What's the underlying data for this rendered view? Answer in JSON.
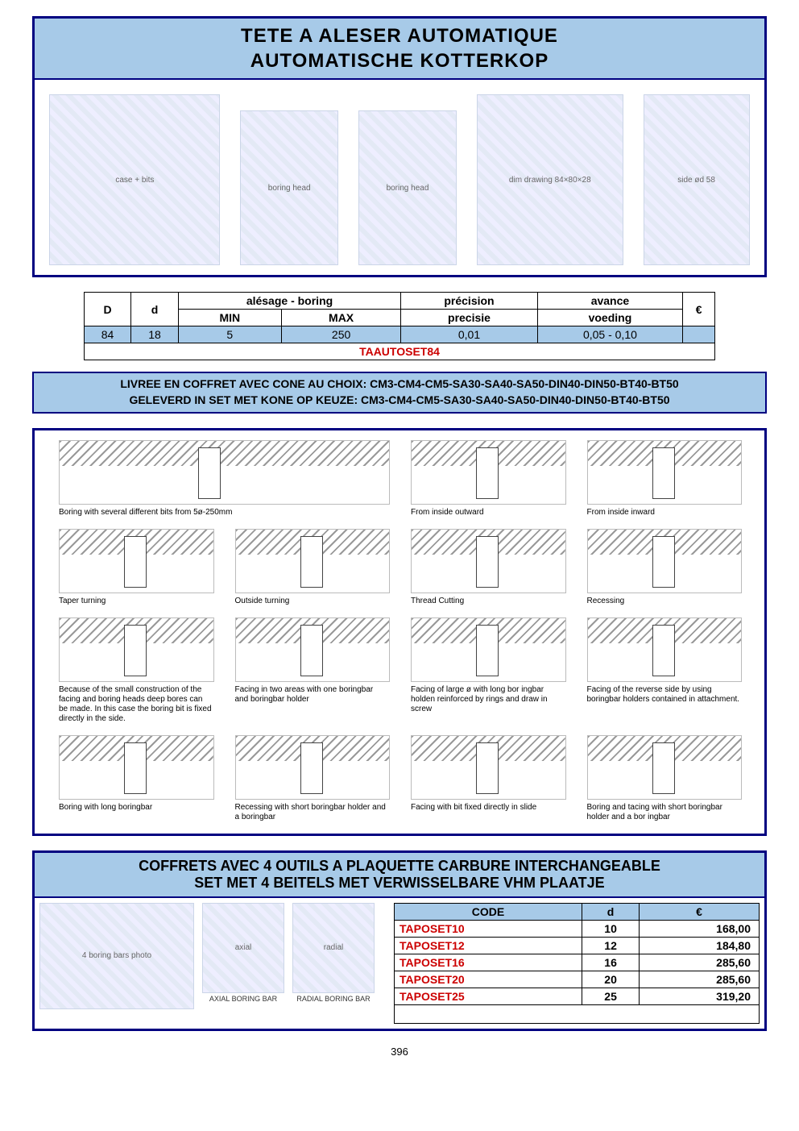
{
  "page_number": "396",
  "colors": {
    "panel_border": "#000080",
    "header_bg": "#a7cae8",
    "code_red": "#cc0000"
  },
  "main_title": {
    "line1": "TETE A ALESER AUTOMATIQUE",
    "line2": "AUTOMATISCHE KOTTERKOP"
  },
  "spec_table": {
    "headers": {
      "D": "D",
      "d": "d",
      "boring_group": "alésage - boring",
      "min": "MIN",
      "max": "MAX",
      "precision": "précision",
      "precision2": "precisie",
      "advance": "avance",
      "advance2": "voeding",
      "price": "€"
    },
    "row": {
      "D": "84",
      "d": "18",
      "min": "5",
      "max": "250",
      "precision": "0,01",
      "advance": "0,05 - 0,10",
      "price": ""
    },
    "code": "TAAUTOSET84"
  },
  "delivery": {
    "line1": "LIVREE EN COFFRET AVEC CONE AU CHOIX: CM3-CM4-CM5-SA30-SA40-SA50-DIN40-DIN50-BT40-BT50",
    "line2": "GELEVERD IN SET MET KONE OP KEUZE: CM3-CM4-CM5-SA30-SA40-SA50-DIN40-DIN50-BT40-BT50"
  },
  "operations": [
    {
      "caption": "Boring with several different bits from 5ø-250mm",
      "span": 2
    },
    {
      "caption": "From inside outward"
    },
    {
      "caption": "From inside inward"
    },
    {
      "caption": "Taper turning"
    },
    {
      "caption": "Outside turning"
    },
    {
      "caption": "Thread Cutting"
    },
    {
      "caption": "Recessing"
    },
    {
      "caption": "Because of the small construction of the facing and boring heads deep bores can be made. In this case the boring bit is fixed directly in the side."
    },
    {
      "caption": "Facing in two areas with one boringbar and boringbar holder"
    },
    {
      "caption": "Facing of large ø with long bor ingbar holden reinforced by rings and draw in screw"
    },
    {
      "caption": "Facing of the reverse side by using boringbar holders contained in attachment."
    },
    {
      "caption": "Boring with long boringbar"
    },
    {
      "caption": "Recessing with short boringbar holder and a boringbar"
    },
    {
      "caption": "Facing with bit fixed directly in slide"
    },
    {
      "caption": "Boring and tacing with short boringbar holder and a bor ingbar"
    }
  ],
  "tools_section": {
    "title1": "COFFRETS AVEC 4 OUTILS A PLAQUETTE CARBURE INTERCHANGEABLE",
    "title2": "SET MET 4 BEITELS MET VERWISSELBARE VHM PLAATJE",
    "bar_labels": {
      "axial": "AXIAL BORING BAR",
      "radial": "RADIAL BORING BAR"
    },
    "headers": {
      "code": "CODE",
      "d": "d",
      "price": "€"
    },
    "rows": [
      {
        "code": "TAPOSET10",
        "d": "10",
        "price": "168,00"
      },
      {
        "code": "TAPOSET12",
        "d": "12",
        "price": "184,80"
      },
      {
        "code": "TAPOSET16",
        "d": "16",
        "price": "285,60"
      },
      {
        "code": "TAPOSET20",
        "d": "20",
        "price": "285,60"
      },
      {
        "code": "TAPOSET25",
        "d": "25",
        "price": "319,20"
      }
    ]
  }
}
